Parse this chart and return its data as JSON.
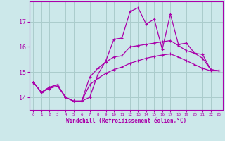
{
  "xlabel": "Windchill (Refroidissement éolien,°C)",
  "bg_color": "#cce8ea",
  "grid_color": "#aacccc",
  "line_color": "#aa00aa",
  "xlim": [
    -0.5,
    23.5
  ],
  "ylim": [
    13.5,
    17.8
  ],
  "yticks": [
    14,
    15,
    16,
    17
  ],
  "xticks": [
    0,
    1,
    2,
    3,
    4,
    5,
    6,
    7,
    8,
    9,
    10,
    11,
    12,
    13,
    14,
    15,
    16,
    17,
    18,
    19,
    20,
    21,
    22,
    23
  ],
  "series1_x": [
    0,
    1,
    2,
    3,
    4,
    5,
    6,
    7,
    8,
    9,
    10,
    11,
    12,
    13,
    14,
    15,
    16,
    17,
    18,
    19,
    20,
    21,
    22,
    23
  ],
  "series1_y": [
    14.6,
    14.2,
    14.4,
    14.5,
    14.0,
    13.85,
    13.85,
    14.0,
    14.9,
    15.45,
    16.3,
    16.35,
    17.4,
    17.55,
    16.9,
    17.1,
    15.9,
    17.3,
    16.1,
    16.15,
    15.75,
    15.7,
    15.1,
    15.05
  ],
  "series2_x": [
    0,
    1,
    2,
    3,
    4,
    5,
    6,
    7,
    8,
    9,
    10,
    11,
    12,
    13,
    14,
    15,
    16,
    17,
    18,
    19,
    20,
    21,
    22,
    23
  ],
  "series2_y": [
    14.6,
    14.2,
    14.4,
    14.5,
    14.0,
    13.85,
    13.85,
    14.8,
    15.15,
    15.4,
    15.6,
    15.65,
    16.0,
    16.05,
    16.1,
    16.15,
    16.2,
    16.25,
    16.05,
    15.85,
    15.75,
    15.55,
    15.1,
    15.05
  ],
  "series3_x": [
    0,
    1,
    2,
    3,
    4,
    5,
    6,
    7,
    8,
    9,
    10,
    11,
    12,
    13,
    14,
    15,
    16,
    17,
    18,
    19,
    20,
    21,
    22,
    23
  ],
  "series3_y": [
    14.6,
    14.2,
    14.35,
    14.45,
    14.0,
    13.85,
    13.85,
    14.5,
    14.75,
    14.95,
    15.1,
    15.2,
    15.35,
    15.45,
    15.55,
    15.62,
    15.68,
    15.72,
    15.6,
    15.45,
    15.3,
    15.15,
    15.05,
    15.05
  ]
}
